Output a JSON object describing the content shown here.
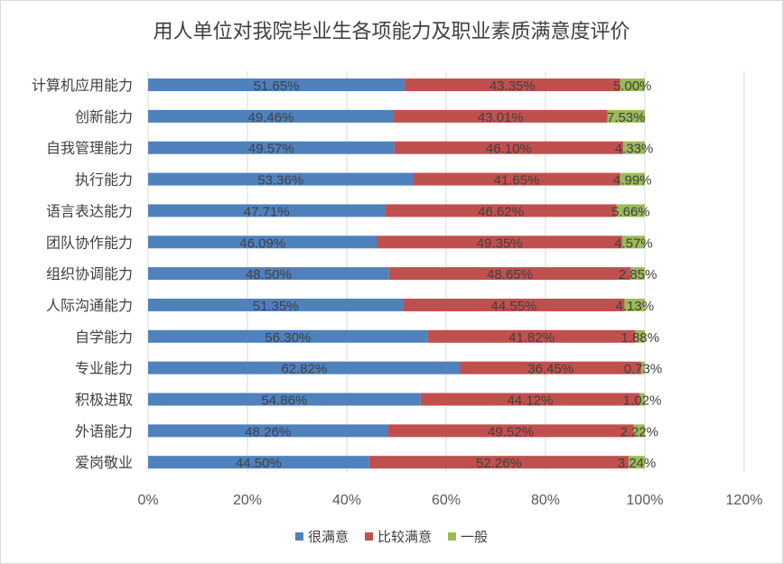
{
  "chart_data": {
    "type": "bar",
    "orientation": "horizontal",
    "stacked": true,
    "title": "用人单位对我院毕业生各项能力及职业素质满意度评价",
    "categories": [
      "计算机应用能力",
      "创新能力",
      "自我管理能力",
      "执行能力",
      "语言表达能力",
      "团队协作能力",
      "组织协调能力",
      "人际沟通能力",
      "自学能力",
      "专业能力",
      "积极进取",
      "外语能力",
      "爱岗敬业"
    ],
    "series": [
      {
        "name": "很满意",
        "color": "#4f81bd",
        "values": [
          51.65,
          49.46,
          49.57,
          53.36,
          47.71,
          46.09,
          48.5,
          51.35,
          56.3,
          62.82,
          54.86,
          48.26,
          44.5
        ],
        "labels": [
          "51.65%",
          "49.46%",
          "49.57%",
          "53.36%",
          "47.71%",
          "46.09%",
          "48.50%",
          "51.35%",
          "56.30%",
          "62.82%",
          "54.86%",
          "48.26%",
          "44.50%"
        ]
      },
      {
        "name": "比较满意",
        "color": "#c0504d",
        "values": [
          43.35,
          43.01,
          46.1,
          41.65,
          46.62,
          49.35,
          48.65,
          44.55,
          41.82,
          36.45,
          44.12,
          49.52,
          52.26
        ],
        "labels": [
          "43.35%",
          "43.01%",
          "46.10%",
          "41.65%",
          "46.62%",
          "49.35%",
          "48.65%",
          "44.55%",
          "41.82%",
          "36.45%",
          "44.12%",
          "49.52%",
          "52.26%"
        ]
      },
      {
        "name": "一般",
        "color": "#9bbb59",
        "values": [
          5.0,
          7.53,
          4.33,
          4.99,
          5.66,
          4.57,
          2.85,
          4.13,
          1.88,
          0.73,
          1.02,
          2.22,
          3.24
        ],
        "labels": [
          "5.00%",
          "7.53%",
          "4.33%",
          "4.99%",
          "5.66%",
          "4.57%",
          "2.85%",
          "4.13%",
          "1.88%",
          "0.73%",
          "1.02%",
          "2.22%",
          "3.24%"
        ]
      }
    ],
    "xlim": [
      0,
      120
    ],
    "x_ticks": [
      0,
      20,
      40,
      60,
      80,
      100,
      120
    ],
    "x_tick_labels": [
      "0%",
      "20%",
      "40%",
      "60%",
      "80%",
      "100%",
      "120%"
    ],
    "grid": "vertical",
    "grid_color": "#d9d9d9",
    "legend_position": "bottom"
  }
}
